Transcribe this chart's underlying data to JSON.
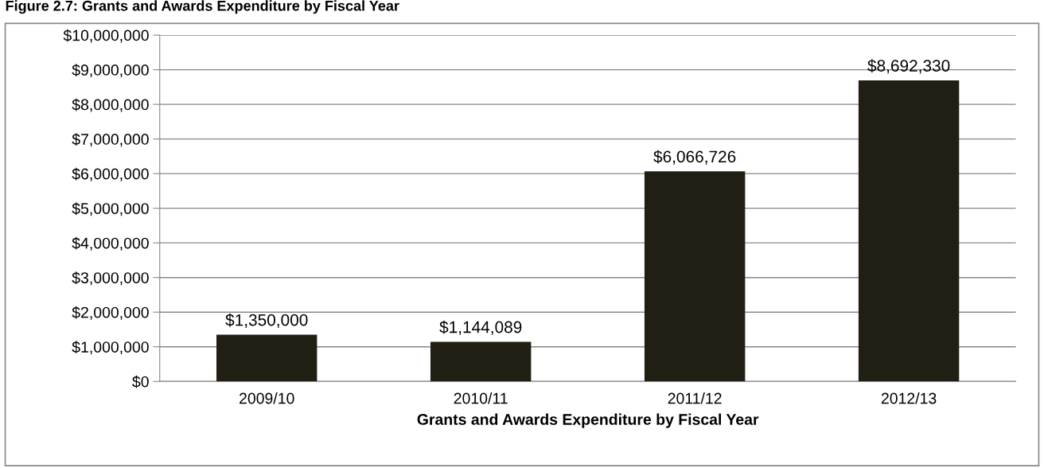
{
  "chart_data": {
    "type": "bar",
    "title": "Figure 2.7: Grants and Awards Expenditure by Fiscal Year",
    "xlabel": "Grants and Awards Expenditure by Fiscal Year",
    "categories": [
      "2009/10",
      "2010/11",
      "2011/12",
      "2012/13"
    ],
    "values": [
      1350000,
      1144089,
      6066726,
      8692330
    ],
    "color": "#211e14",
    "value_labels": [
      "$1,350,000",
      "$1,144,089",
      "$6,066,726",
      "$8,692,330"
    ],
    "ylim": [
      0,
      10000000
    ],
    "yticks": [
      {
        "value": 0,
        "label": "$0"
      },
      {
        "value": 1000000,
        "label": "$1,000,000"
      },
      {
        "value": 2000000,
        "label": "$2,000,000"
      },
      {
        "value": 3000000,
        "label": "$3,000,000"
      },
      {
        "value": 4000000,
        "label": "$4,000,000"
      },
      {
        "value": 5000000,
        "label": "$5,000,000"
      },
      {
        "value": 6000000,
        "label": "$6,000,000"
      },
      {
        "value": 7000000,
        "label": "$7,000,000"
      },
      {
        "value": 8000000,
        "label": "$8,000,000"
      },
      {
        "value": 9000000,
        "label": "$9,000,000"
      },
      {
        "value": 10000000,
        "label": "$10,000,000"
      }
    ],
    "grid": "y",
    "legend": false
  }
}
